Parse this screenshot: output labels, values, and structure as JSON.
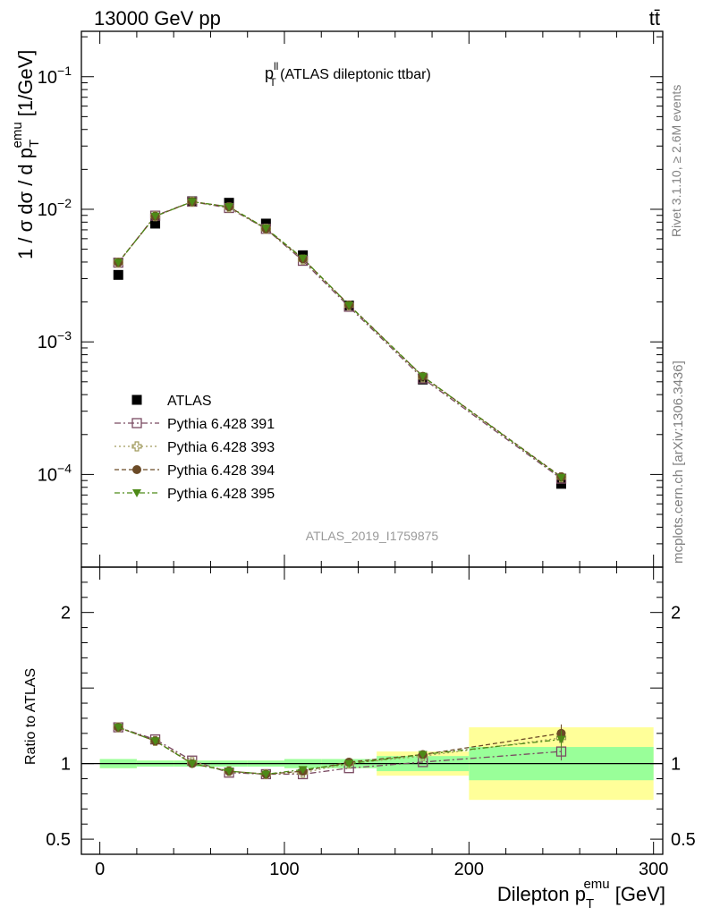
{
  "header": {
    "left": "13000 GeV pp",
    "right": "tt̄"
  },
  "side_labels": {
    "top": "Rivet 3.1.10, ≥ 2.6M events",
    "bottom": "mcplots.cern.ch [arXiv:1306.3436]"
  },
  "chart_data": {
    "type": "scatter",
    "title": "p_T^ll (ATLAS dileptonic ttbar)",
    "title_main": "p",
    "title_sup": "ll",
    "title_sub": "T",
    "title_rest": " (ATLAS dileptonic ttbar)",
    "analysis_id": "ATLAS_2019_I1759875",
    "xlabel": "Dilepton p_T^emu [GeV]",
    "xlabel_main": "Dilepton p",
    "xlabel_sub": "T",
    "xlabel_sup": "emu",
    "xlabel_unit": " [GeV]",
    "ylabel": "1 / σ dσ / d p_T^emu [1/GeV]",
    "ylabel_main": "1 / σ dσ / d p",
    "ylabel_sub": "T",
    "ylabel_sup": "emu",
    "ylabel_unit": " [1/GeV]",
    "ratio_ylabel": "Ratio to ATLAS",
    "xlim": [
      -10,
      305
    ],
    "ylim": [
      2e-05,
      0.22
    ],
    "yscale": "log",
    "ratio_ylim": [
      0.4,
      2.3
    ],
    "x_ticks": [
      0,
      100,
      200,
      300
    ],
    "x_tick_labels": [
      "0",
      "100",
      "200",
      "300"
    ],
    "y_ticks": [
      0.0001,
      0.001,
      0.01,
      0.1
    ],
    "y_tick_labels": [
      {
        "base": "10",
        "exp": "−4"
      },
      {
        "base": "10",
        "exp": "−3"
      },
      {
        "base": "10",
        "exp": "−2"
      },
      {
        "base": "10",
        "exp": "−1"
      }
    ],
    "ratio_ticks": [
      0.5,
      1,
      2
    ],
    "ratio_tick_labels": [
      "0.5",
      "1",
      "2"
    ],
    "legend_position": "lower-left",
    "bins": [
      {
        "lo": 0,
        "hi": 20
      },
      {
        "lo": 20,
        "hi": 40
      },
      {
        "lo": 40,
        "hi": 60
      },
      {
        "lo": 60,
        "hi": 80
      },
      {
        "lo": 80,
        "hi": 100
      },
      {
        "lo": 100,
        "hi": 120
      },
      {
        "lo": 120,
        "hi": 150
      },
      {
        "lo": 150,
        "hi": 200
      },
      {
        "lo": 200,
        "hi": 300
      }
    ],
    "x": [
      10,
      30,
      50,
      70,
      90,
      110,
      135,
      175,
      250
    ],
    "data": {
      "name": "ATLAS",
      "color": "#000000",
      "values": [
        0.0032,
        0.0078,
        0.0115,
        0.0112,
        0.0078,
        0.0045,
        0.00188,
        0.00052,
        8.5e-05
      ],
      "band_inner": [
        0.03,
        0.02,
        0.02,
        0.02,
        0.02,
        0.03,
        0.03,
        0.05,
        0.11
      ],
      "band_outer": [
        0.03,
        0.02,
        0.02,
        0.02,
        0.02,
        0.03,
        0.03,
        0.08,
        0.24
      ]
    },
    "series": [
      {
        "name": "Pythia 6.428 391",
        "color": "#7a4a62",
        "marker": "open-square",
        "dash": "7,3,2,3",
        "values": [
          0.00396,
          0.00895,
          0.01141,
          0.01023,
          0.00712,
          0.00409,
          0.00184,
          0.00053,
          9.3e-05
        ],
        "ratio": [
          1.24,
          1.16,
          1.02,
          0.94,
          0.93,
          0.93,
          0.97,
          1.01,
          1.08
        ]
      },
      {
        "name": "Pythia 6.428 393",
        "color": "#a09a5c",
        "marker": "open-cross",
        "dash": "2,3",
        "values": [
          0.00396,
          0.00887,
          0.01141,
          0.01034,
          0.00712,
          0.00418,
          0.00188,
          0.00054,
          9.5e-05
        ],
        "ratio": [
          1.24,
          1.15,
          1.01,
          0.95,
          0.93,
          0.94,
          1.0,
          1.05,
          1.17
        ]
      },
      {
        "name": "Pythia 6.428 394",
        "color": "#6b4a26",
        "marker": "filled-circle",
        "dash": "5,3",
        "values": [
          0.00397,
          0.00887,
          0.01141,
          0.01045,
          0.00712,
          0.00423,
          0.0019,
          0.00055,
          9.6e-05
        ],
        "ratio": [
          1.24,
          1.15,
          1.0,
          0.95,
          0.93,
          0.95,
          1.01,
          1.06,
          1.2
        ]
      },
      {
        "name": "Pythia 6.428 395",
        "color": "#4d8a17",
        "marker": "filled-triangle-down",
        "dash": "6,3,2,3",
        "values": [
          0.00397,
          0.00887,
          0.01141,
          0.01045,
          0.0072,
          0.00427,
          0.00189,
          0.00055,
          9.5e-05
        ],
        "ratio": [
          1.24,
          1.15,
          1.0,
          0.95,
          0.93,
          0.96,
          1.0,
          1.06,
          1.16
        ]
      }
    ]
  }
}
